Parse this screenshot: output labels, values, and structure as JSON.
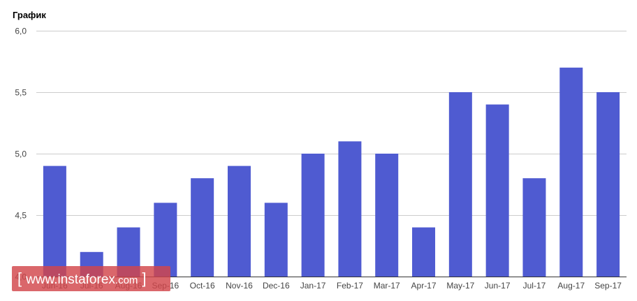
{
  "chart_data": {
    "type": "bar",
    "title": "График",
    "categories": [
      "Jun-16",
      "Jul-16",
      "Aug-16",
      "Sep-16",
      "Oct-16",
      "Nov-16",
      "Dec-16",
      "Jan-17",
      "Feb-17",
      "Mar-17",
      "Apr-17",
      "May-17",
      "Jun-17",
      "Jul-17",
      "Aug-17",
      "Sep-17"
    ],
    "values": [
      4.9,
      4.2,
      4.4,
      4.6,
      4.8,
      4.9,
      4.6,
      5.0,
      5.1,
      5.0,
      4.4,
      5.5,
      5.4,
      4.8,
      5.7,
      5.5
    ],
    "ylim": [
      4.0,
      6.0
    ],
    "yticks": [
      "4,0",
      "4,5",
      "5,0",
      "5,5",
      "6,0"
    ],
    "ytick_values": [
      4.0,
      4.5,
      5.0,
      5.5,
      6.0
    ],
    "xlabel": "",
    "ylabel": "",
    "grid": true,
    "bar_color": "#4f5bd1",
    "grid_color": "#cccccc",
    "axis_color": "#333333"
  },
  "watermark": {
    "bracket_open": "[",
    "text": "www.instaforex",
    "suffix": ".com",
    "bracket_close": "]"
  }
}
